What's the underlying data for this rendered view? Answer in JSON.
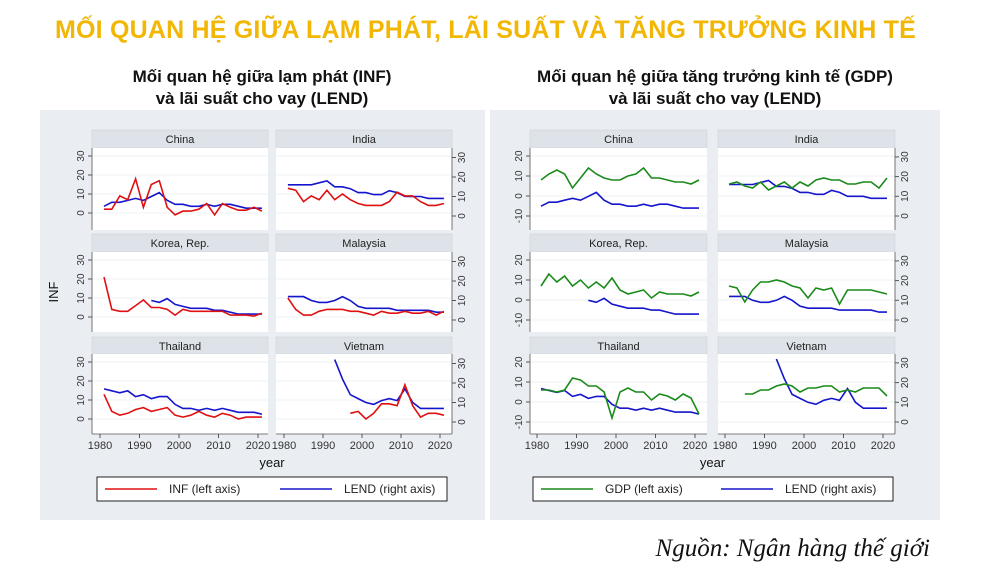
{
  "title": "MỐI QUAN HỆ GIỮA LẠM PHÁT, LÃI SUẤT VÀ TĂNG TRƯỞNG KINH TẾ",
  "source": "Nguồn: Ngân hàng thế giới",
  "colors": {
    "title": "#f2b705",
    "inf": "#e01010",
    "gdp": "#1a8a1a",
    "lend": "#1515cc",
    "panel_bg": "#eaeef2",
    "strip": "#dde3e8"
  },
  "chart_data": [
    {
      "type": "line",
      "title_line1": "Mối quan hệ giữa lạm phát (INF)",
      "title_line2": "và lãi suất cho vay (LEND)",
      "ylabel": "INF",
      "xlabel": "year",
      "left_ticks": [
        "0",
        "10",
        "20",
        "30"
      ],
      "left_tick_values": [
        0,
        10,
        20,
        30
      ],
      "right_ticks": [
        "0",
        "10",
        "20",
        "30"
      ],
      "right_tick_values": [
        0,
        10,
        20,
        30
      ],
      "ylim_left": [
        -5,
        33
      ],
      "x_ticks": [
        "1980",
        "1990",
        "2000",
        "2010",
        "2020"
      ],
      "x_tick_values": [
        1980,
        1990,
        2000,
        2010,
        2020
      ],
      "legend": [
        {
          "name": "INF (left axis)",
          "color": "inf"
        },
        {
          "name": "LEND (right axis)",
          "color": "lend"
        }
      ],
      "legend_placement": "bottom",
      "x": [
        1981,
        1983,
        1985,
        1987,
        1989,
        1991,
        1993,
        1995,
        1997,
        1999,
        2001,
        2003,
        2005,
        2007,
        2009,
        2011,
        2013,
        2015,
        2017,
        2019,
        2021
      ],
      "panels": [
        {
          "name": "China",
          "main": [
            2,
            2,
            9,
            7,
            18,
            3,
            15,
            17,
            3,
            -1,
            1,
            1,
            2,
            5,
            -1,
            5,
            3,
            1.5,
            1.5,
            3,
            1
          ],
          "lend": [
            5,
            7,
            7,
            8,
            9,
            8,
            10,
            12,
            8,
            6,
            6,
            5,
            5,
            6,
            5,
            6,
            6,
            5,
            4,
            4,
            4
          ]
        },
        {
          "name": "India",
          "main": [
            13,
            12,
            6,
            9,
            7,
            12,
            7,
            10,
            7,
            5,
            4,
            4,
            4,
            6,
            11,
            9,
            9,
            6,
            4,
            4,
            5
          ],
          "lend": [
            16,
            16,
            16,
            16,
            17,
            18,
            15,
            15,
            14,
            12,
            12,
            11,
            11,
            13,
            12,
            10,
            10,
            10,
            9,
            9,
            9
          ]
        },
        {
          "name": "Korea, Rep.",
          "main": [
            21,
            4,
            3,
            3,
            6,
            9,
            5,
            5,
            4,
            1,
            4,
            3,
            3,
            3,
            3,
            3,
            1,
            1,
            1,
            0.5,
            2
          ],
          "lend": [
            null,
            null,
            null,
            null,
            null,
            null,
            10,
            9,
            11,
            8,
            7,
            6,
            6,
            6,
            5,
            5,
            4,
            3,
            3,
            3,
            3
          ]
        },
        {
          "name": "Malaysia",
          "main": [
            10,
            4,
            1,
            1,
            3,
            4,
            4,
            4,
            3,
            3,
            2,
            1,
            3,
            2,
            2,
            3,
            2,
            2,
            3,
            1,
            3
          ],
          "lend": [
            12,
            12,
            12,
            10,
            9,
            9,
            10,
            12,
            10,
            7,
            6,
            6,
            6,
            6,
            5,
            5,
            5,
            5,
            5,
            4,
            4
          ]
        },
        {
          "name": "Thailand",
          "main": [
            13,
            4,
            2,
            3,
            5,
            6,
            4,
            5,
            6,
            2,
            1,
            2,
            4,
            2,
            1,
            3,
            2,
            0,
            1,
            1,
            1
          ],
          "lend": [
            17,
            16,
            15,
            16,
            13,
            14,
            12,
            13,
            13,
            9,
            7,
            7,
            6,
            7,
            6,
            7,
            6,
            5,
            5,
            5,
            4
          ]
        },
        {
          "name": "Vietnam",
          "main": [
            null,
            null,
            null,
            null,
            null,
            null,
            null,
            null,
            3,
            4,
            0,
            3,
            8,
            8,
            7,
            18,
            7,
            1,
            3,
            3,
            2
          ],
          "lend": [
            null,
            null,
            null,
            null,
            null,
            null,
            32,
            22,
            14,
            12,
            10,
            9,
            11,
            12,
            11,
            17,
            10,
            7,
            7,
            7,
            7
          ]
        }
      ]
    },
    {
      "type": "line",
      "title_line1": "Mối quan hệ giữa tăng trưởng kinh tế (GDP)",
      "title_line2": "và lãi suất cho vay (LEND)",
      "ylabel": "",
      "xlabel": "year",
      "left_ticks": [
        "-10",
        "0",
        "10",
        "20"
      ],
      "left_tick_values": [
        -10,
        0,
        10,
        20
      ],
      "right_ticks": [
        "0",
        "10",
        "20",
        "30"
      ],
      "right_tick_values": [
        0,
        10,
        20,
        30
      ],
      "ylim_left": [
        -13,
        24
      ],
      "x_ticks": [
        "1980",
        "1990",
        "2000",
        "2010",
        "2020"
      ],
      "x_tick_values": [
        1980,
        1990,
        2000,
        2010,
        2020
      ],
      "legend": [
        {
          "name": "GDP (left axis)",
          "color": "gdp"
        },
        {
          "name": "LEND (right axis)",
          "color": "lend"
        }
      ],
      "legend_placement": "bottom",
      "x": [
        1981,
        1983,
        1985,
        1987,
        1989,
        1991,
        1993,
        1995,
        1997,
        1999,
        2001,
        2003,
        2005,
        2007,
        2009,
        2011,
        2013,
        2015,
        2017,
        2019,
        2021
      ],
      "panels": [
        {
          "name": "China",
          "main": [
            8,
            11,
            13,
            11,
            4,
            9,
            14,
            11,
            9,
            8,
            8,
            10,
            11,
            14,
            9,
            9,
            8,
            7,
            7,
            6,
            8
          ],
          "lend": [
            5,
            7,
            7,
            8,
            9,
            8,
            10,
            12,
            8,
            6,
            6,
            5,
            5,
            6,
            5,
            6,
            6,
            5,
            4,
            4,
            4
          ]
        },
        {
          "name": "India",
          "main": [
            6,
            7,
            5,
            4,
            7,
            3,
            5,
            7,
            4,
            7,
            5,
            8,
            9,
            8,
            8,
            6,
            6,
            7,
            7,
            4,
            9
          ],
          "lend": [
            16,
            16,
            16,
            16,
            17,
            18,
            15,
            15,
            14,
            12,
            12,
            11,
            11,
            13,
            12,
            10,
            10,
            10,
            9,
            9,
            9
          ]
        },
        {
          "name": "Korea, Rep.",
          "main": [
            7,
            13,
            9,
            12,
            7,
            10,
            6,
            9,
            6,
            11,
            5,
            3,
            4,
            5,
            1,
            4,
            3,
            3,
            3,
            2,
            4
          ],
          "lend": [
            null,
            null,
            null,
            null,
            null,
            null,
            10,
            9,
            11,
            8,
            7,
            6,
            6,
            6,
            5,
            5,
            4,
            3,
            3,
            3,
            3
          ]
        },
        {
          "name": "Malaysia",
          "main": [
            7,
            6,
            -1,
            5,
            9,
            9,
            10,
            9,
            7,
            6,
            1,
            6,
            5,
            6,
            -2,
            5,
            5,
            5,
            5,
            4,
            3
          ],
          "lend": [
            12,
            12,
            12,
            10,
            9,
            9,
            10,
            12,
            10,
            7,
            6,
            6,
            6,
            6,
            5,
            5,
            5,
            5,
            5,
            4,
            4
          ]
        },
        {
          "name": "Thailand",
          "main": [
            6,
            6,
            5,
            6,
            12,
            11,
            8,
            8,
            5,
            -8,
            5,
            7,
            5,
            5,
            1,
            4,
            3,
            1,
            4,
            2,
            -6
          ],
          "lend": [
            17,
            16,
            15,
            16,
            13,
            14,
            12,
            13,
            13,
            9,
            7,
            7,
            6,
            7,
            6,
            7,
            6,
            5,
            5,
            5,
            4
          ]
        },
        {
          "name": "Vietnam",
          "main": [
            null,
            null,
            4,
            4,
            6,
            6,
            8,
            9,
            8,
            5,
            7,
            7,
            8,
            8,
            5,
            6,
            5,
            7,
            7,
            7,
            3
          ],
          "lend": [
            null,
            null,
            null,
            null,
            null,
            null,
            32,
            22,
            14,
            12,
            10,
            9,
            11,
            12,
            11,
            17,
            10,
            7,
            7,
            7,
            7
          ]
        }
      ]
    }
  ]
}
